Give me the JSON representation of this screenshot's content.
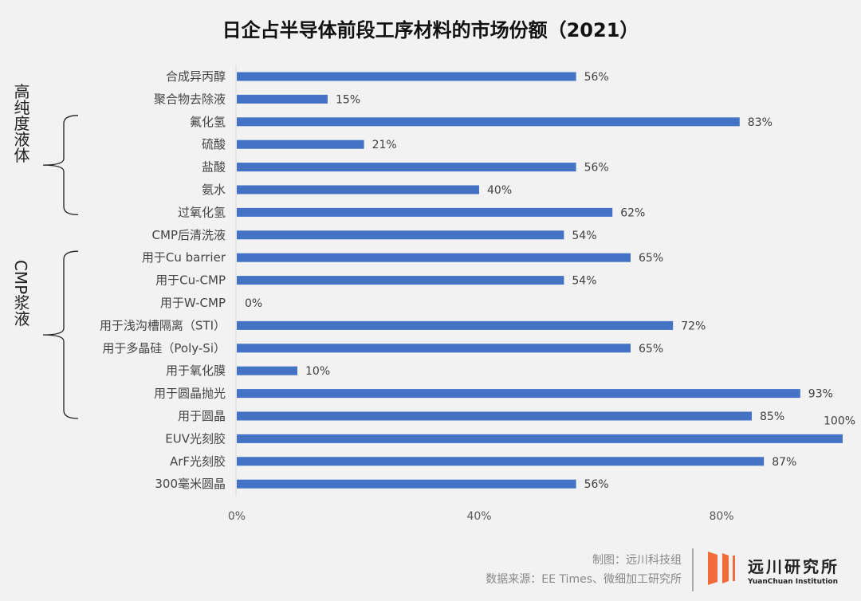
{
  "chart_data": {
    "type": "bar",
    "orientation": "horizontal",
    "title": "日企占半导体前段工序材料的市场份额（2021）",
    "categories": [
      "合成异丙醇",
      "聚合物去除液",
      "氟化氢",
      "硫酸",
      "盐酸",
      "氨水",
      "过氧化氢",
      "CMP后清洗液",
      "用于Cu barrier",
      "用于Cu-CMP",
      "用于W-CMP",
      "用于浅沟槽隔离（STI）",
      "用于多晶硅（Poly-Si）",
      "用于氧化膜",
      "用于圆晶抛光",
      "用于圆晶",
      "EUV光刻胶",
      "ArF光刻胶",
      "300毫米圆晶"
    ],
    "values": [
      56,
      15,
      83,
      21,
      56,
      40,
      62,
      54,
      65,
      54,
      0,
      72,
      65,
      10,
      93,
      85,
      100,
      87,
      56
    ],
    "data_labels": [
      "56%",
      "15%",
      "83%",
      "21%",
      "56%",
      "40%",
      "62%",
      "54%",
      "65%",
      "54%",
      "0%",
      "72%",
      "65%",
      "10%",
      "93%",
      "85%",
      "100%",
      "87%",
      "56%"
    ],
    "xlim": [
      0,
      100
    ],
    "x_ticks": [
      "0%",
      "40%",
      "80%"
    ],
    "x_tick_values": [
      0,
      40,
      80
    ],
    "grid": false,
    "bar_color": "#4472c4",
    "groups": [
      {
        "label": "高纯度液体",
        "from": 2,
        "to": 6
      },
      {
        "label": "CMP浆液",
        "from": 8,
        "to": 15
      }
    ]
  },
  "footer": {
    "credit": "制图：远川科技组",
    "source": "数据来源：EE Times、微细加工研究所",
    "logo_cn": "远川研究所",
    "logo_en": "YuanChuan Institution",
    "logo_color": "#f26b3a"
  }
}
